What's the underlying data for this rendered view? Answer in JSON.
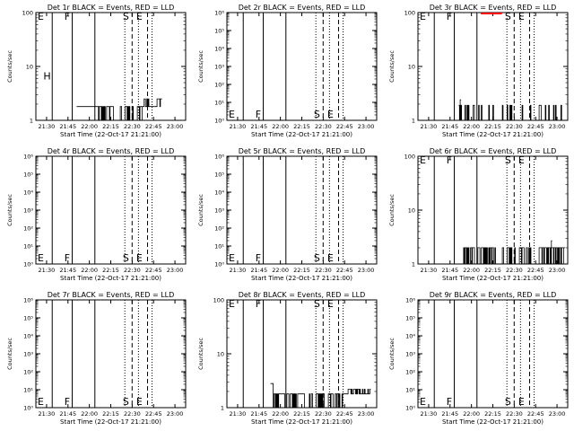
{
  "chart_data": [
    {
      "type": "line",
      "title": "Det 1r BLACK = Events, RED = LLD",
      "xlabel": "Start Time (22-Oct-17 21:21:00)",
      "ylabel": "Counts/sec",
      "yscale": "log",
      "ylim": [
        1,
        100
      ],
      "ytick_labels": [
        "1",
        "10",
        "100"
      ],
      "xtick_labels": [
        "21:30",
        "21:45",
        "22:00",
        "22:15",
        "22:30",
        "22:45",
        "23:00"
      ],
      "flags": [
        {
          "label": "E",
          "t": 22.0
        },
        {
          "label": "F",
          "t": 40.0
        },
        {
          "label": "S",
          "t": 137.0
        },
        {
          "label": "E",
          "t": 149.0
        },
        {
          "label": "H",
          "t": 32.0
        }
      ],
      "series": [
        {
          "name": "Events",
          "color": "#000000",
          "profile": "det1"
        }
      ]
    },
    {
      "type": "line",
      "title": "Det 2r BLACK = Events, RED = LLD",
      "xlabel": "Start Time (22-Oct-17 21:21:00)",
      "ylabel": "Counts/sec",
      "yscale": "log",
      "ylim": [
        1,
        1000000
      ],
      "ytick_labels": [
        "10⁰",
        "10¹",
        "10²",
        "10³",
        "10⁴",
        "10⁵",
        "10⁶"
      ],
      "xtick_labels": [
        "21:30",
        "21:45",
        "22:00",
        "22:15",
        "22:30",
        "22:45",
        "23:00"
      ],
      "flags": [
        {
          "label": "E",
          "t": 22.0
        },
        {
          "label": "F",
          "t": 40.0
        },
        {
          "label": "S",
          "t": 137.0
        },
        {
          "label": "E",
          "t": 149.0
        }
      ],
      "series": [
        {
          "name": "Events",
          "color": "#000000",
          "profile": "none"
        }
      ]
    },
    {
      "type": "line",
      "title": "Det 3r BLACK = Events, RED = LLD",
      "xlabel": "Start Time (22-Oct-17 21:21:00)",
      "ylabel": "Counts/sec",
      "yscale": "log",
      "ylim": [
        1,
        100
      ],
      "ytick_labels": [
        "1",
        "10",
        "100"
      ],
      "xtick_labels": [
        "21:30",
        "21:45",
        "22:00",
        "22:15",
        "22:30",
        "22:45",
        "23:00"
      ],
      "flags": [
        {
          "label": "E",
          "t": 22.0
        },
        {
          "label": "F",
          "t": 40.0
        },
        {
          "label": "S",
          "t": 137.0
        },
        {
          "label": "E",
          "t": 149.0
        }
      ],
      "series": [
        {
          "name": "Events",
          "color": "#000000",
          "profile": "sparse"
        },
        {
          "name": "LLD",
          "color": "#ff0000",
          "profile": "red_top"
        }
      ]
    },
    {
      "type": "line",
      "title": "Det 4r BLACK = Events, RED = LLD",
      "xlabel": "Start Time (22-Oct-17 21:21:00)",
      "ylabel": "Counts/sec",
      "yscale": "log",
      "ylim": [
        1,
        1000000
      ],
      "ytick_labels": [
        "10⁰",
        "10¹",
        "10²",
        "10³",
        "10⁴",
        "10⁵",
        "10⁶"
      ],
      "xtick_labels": [
        "21:30",
        "21:45",
        "22:00",
        "22:15",
        "22:30",
        "22:45",
        "23:00"
      ],
      "flags": [
        {
          "label": "E",
          "t": 22.0
        },
        {
          "label": "F",
          "t": 40.0
        },
        {
          "label": "S",
          "t": 137.0
        },
        {
          "label": "E",
          "t": 149.0
        }
      ],
      "series": [
        {
          "name": "Events",
          "color": "#000000",
          "profile": "none"
        }
      ]
    },
    {
      "type": "line",
      "title": "Det 5r BLACK = Events, RED = LLD",
      "xlabel": "Start Time (22-Oct-17 21:21:00)",
      "ylabel": "Counts/sec",
      "yscale": "log",
      "ylim": [
        1,
        1000000
      ],
      "ytick_labels": [
        "10⁰",
        "10¹",
        "10²",
        "10³",
        "10⁴",
        "10⁵",
        "10⁶"
      ],
      "xtick_labels": [
        "21:30",
        "21:45",
        "22:00",
        "22:15",
        "22:30",
        "22:45",
        "23:00"
      ],
      "flags": [
        {
          "label": "E",
          "t": 22.0
        },
        {
          "label": "F",
          "t": 40.0
        },
        {
          "label": "S",
          "t": 137.0
        },
        {
          "label": "E",
          "t": 149.0
        }
      ],
      "series": [
        {
          "name": "Events",
          "color": "#000000",
          "profile": "none"
        }
      ]
    },
    {
      "type": "line",
      "title": "Det 6r BLACK = Events, RED = LLD",
      "xlabel": "Start Time (22-Oct-17 21:21:00)",
      "ylabel": "Counts/sec",
      "yscale": "log",
      "ylim": [
        1,
        100
      ],
      "ytick_labels": [
        "1",
        "10",
        "100"
      ],
      "xtick_labels": [
        "21:30",
        "21:45",
        "22:00",
        "22:15",
        "22:30",
        "22:45",
        "23:00"
      ],
      "flags": [
        {
          "label": "E",
          "t": 22.0
        },
        {
          "label": "F",
          "t": 40.0
        },
        {
          "label": "S",
          "t": 137.0
        },
        {
          "label": "E",
          "t": 149.0
        }
      ],
      "series": [
        {
          "name": "Events",
          "color": "#000000",
          "profile": "det6"
        }
      ]
    },
    {
      "type": "line",
      "title": "Det 7r BLACK = Events, RED = LLD",
      "xlabel": "Start Time (22-Oct-17 21:21:00)",
      "ylabel": "Counts/sec",
      "yscale": "log",
      "ylim": [
        1,
        1000000
      ],
      "ytick_labels": [
        "10⁰",
        "10¹",
        "10²",
        "10³",
        "10⁴",
        "10⁵",
        "10⁶"
      ],
      "xtick_labels": [
        "21:30",
        "21:45",
        "22:00",
        "22:15",
        "22:30",
        "22:45",
        "23:00"
      ],
      "flags": [
        {
          "label": "E",
          "t": 22.0
        },
        {
          "label": "F",
          "t": 40.0
        },
        {
          "label": "S",
          "t": 137.0
        },
        {
          "label": "E",
          "t": 149.0
        }
      ],
      "series": [
        {
          "name": "Events",
          "color": "#000000",
          "profile": "none"
        }
      ]
    },
    {
      "type": "line",
      "title": "Det 8r BLACK = Events, RED = LLD",
      "xlabel": "Start Time (22-Oct-17 21:21:00)",
      "ylabel": "Counts/sec",
      "yscale": "log",
      "ylim": [
        1,
        100
      ],
      "ytick_labels": [
        "1",
        "10",
        "100"
      ],
      "xtick_labels": [
        "21:30",
        "21:45",
        "22:00",
        "22:15",
        "22:30",
        "22:45",
        "23:00"
      ],
      "flags": [
        {
          "label": "E",
          "t": 22.0
        },
        {
          "label": "F",
          "t": 40.0
        },
        {
          "label": "S",
          "t": 137.0
        },
        {
          "label": "E",
          "t": 149.0
        }
      ],
      "series": [
        {
          "name": "Events",
          "color": "#000000",
          "profile": "det8"
        }
      ]
    },
    {
      "type": "line",
      "title": "Det 9r BLACK = Events, RED = LLD",
      "xlabel": "Start Time (22-Oct-17 21:21:00)",
      "ylabel": "Counts/sec",
      "yscale": "log",
      "ylim": [
        1,
        1000000
      ],
      "ytick_labels": [
        "10⁰",
        "10¹",
        "10²",
        "10³",
        "10⁴",
        "10⁵",
        "10⁶"
      ],
      "xtick_labels": [
        "21:30",
        "21:45",
        "22:00",
        "22:15",
        "22:30",
        "22:45",
        "23:00"
      ],
      "flags": [
        {
          "label": "E",
          "t": 22.0
        },
        {
          "label": "F",
          "t": 40.0
        },
        {
          "label": "S",
          "t": 137.0
        },
        {
          "label": "E",
          "t": 149.0
        }
      ],
      "series": [
        {
          "name": "Events",
          "color": "#000000",
          "profile": "none"
        }
      ]
    }
  ],
  "shared_x": {
    "xlim_minutes": [
      0,
      100
    ],
    "xtick_minutes": [
      9,
      24,
      39,
      54,
      69,
      84,
      99
    ],
    "solid_lines": [
      18,
      40,
      65
    ],
    "dashed_lines": [
      135,
      155
    ],
    "dotted_lines": [
      124,
      143,
      160
    ]
  },
  "flag_text": {
    "E": "E",
    "F": "F",
    "S": "S",
    "H": "H"
  }
}
